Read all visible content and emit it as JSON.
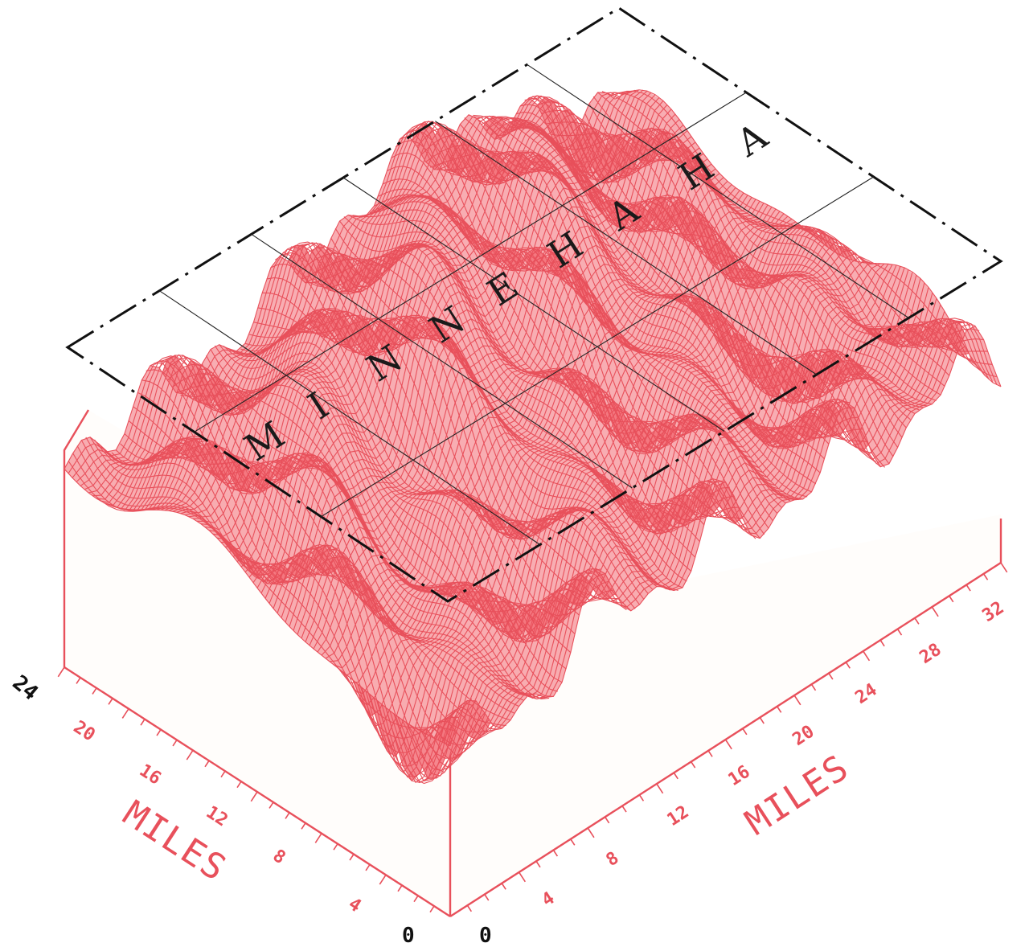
{
  "diagram": {
    "labels": {
      "left_axis_name": "MILES",
      "right_axis_name": "MILES",
      "left_ticks": [
        "4",
        "8",
        "12",
        "16",
        "20",
        "24"
      ],
      "right_ticks": [
        "4",
        "8",
        "12",
        "16",
        "20",
        "24",
        "28",
        "32"
      ],
      "left_origin": "0",
      "right_origin": "0"
    },
    "overlay_letters": [
      "M",
      "I",
      "N",
      "N",
      "E",
      "H",
      "A",
      "H",
      "A"
    ],
    "colors": {
      "surface": "#e8505b",
      "frame": "#111111",
      "background": "#ffffff"
    }
  }
}
